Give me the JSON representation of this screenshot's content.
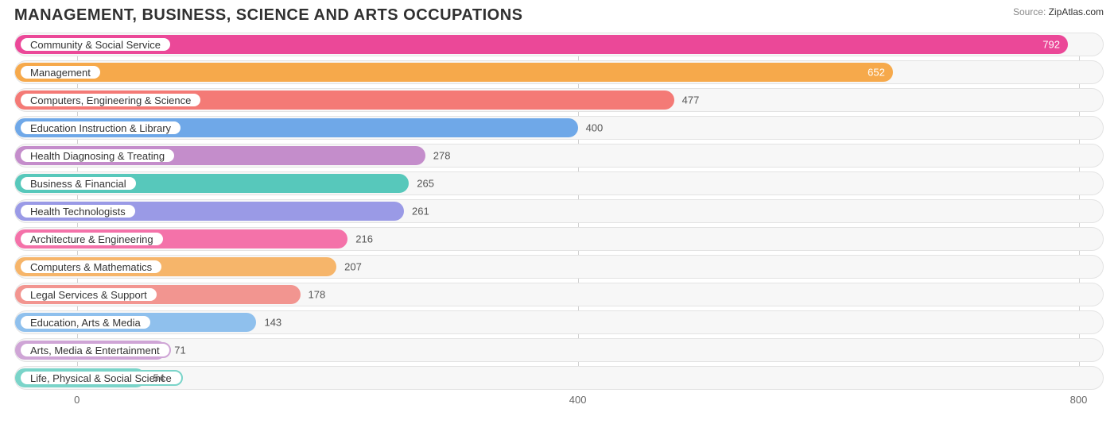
{
  "title": "MANAGEMENT, BUSINESS, SCIENCE AND ARTS OCCUPATIONS",
  "source_label": "Source:",
  "source_name": "ZipAtlas.com",
  "chart": {
    "type": "bar-horizontal",
    "xmin": -50,
    "xmax": 820,
    "xticks": [
      0,
      400,
      800
    ],
    "track_bg": "#f7f7f7",
    "track_border": "#e3e3e3",
    "grid_color": "#d0d0d0",
    "value_fontsize": 13,
    "label_fontsize": 13,
    "bars": [
      {
        "label": "Community & Social Service",
        "value": 792,
        "color": "#eb4898",
        "value_inside": true
      },
      {
        "label": "Management",
        "value": 652,
        "color": "#f6a94b",
        "value_inside": true
      },
      {
        "label": "Computers, Engineering & Science",
        "value": 477,
        "color": "#f47a76",
        "value_inside": false
      },
      {
        "label": "Education Instruction & Library",
        "value": 400,
        "color": "#6fa8e8",
        "value_inside": false
      },
      {
        "label": "Health Diagnosing & Treating",
        "value": 278,
        "color": "#c48dcb",
        "value_inside": false
      },
      {
        "label": "Business & Financial",
        "value": 265,
        "color": "#57c8bb",
        "value_inside": false
      },
      {
        "label": "Health Technologists",
        "value": 261,
        "color": "#9a9ae6",
        "value_inside": false
      },
      {
        "label": "Architecture & Engineering",
        "value": 216,
        "color": "#f472a9",
        "value_inside": false
      },
      {
        "label": "Computers & Mathematics",
        "value": 207,
        "color": "#f6b56a",
        "value_inside": false
      },
      {
        "label": "Legal Services & Support",
        "value": 178,
        "color": "#f29590",
        "value_inside": false
      },
      {
        "label": "Education, Arts & Media",
        "value": 143,
        "color": "#8fc0ed",
        "value_inside": false
      },
      {
        "label": "Arts, Media & Entertainment",
        "value": 71,
        "color": "#cfa5d6",
        "value_inside": false
      },
      {
        "label": "Life, Physical & Social Science",
        "value": 54,
        "color": "#7ad4c9",
        "value_inside": false
      }
    ]
  }
}
